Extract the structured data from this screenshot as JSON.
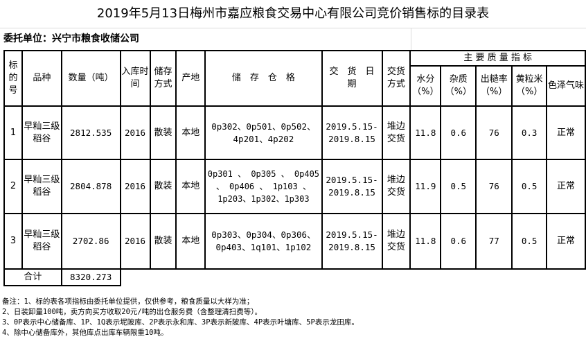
{
  "title": "2019年5月13日梅州市嘉应粮食交易中心有限公司竞价销售标的目录表",
  "client": "委托单位：兴宁市粮食收储公司",
  "headers": {
    "lot_no": "标的号",
    "variety": "品种",
    "quantity": "数量（吨）",
    "storage_time": "入库时间",
    "storage_mode": "储存方式",
    "origin": "产地",
    "warehouse": "储　存　仓　格",
    "delivery_date": "交　货　日　期",
    "delivery_mode": "交货方式",
    "quality_group": "主 要 质 量 指 标",
    "moisture": "水分（%）",
    "impurity": "杂质（%）",
    "husking_rate": "出糙率（%）",
    "yellow_rice": "黄粒米（%）",
    "color_odor": "色泽气味"
  },
  "rows": [
    {
      "lot": "1",
      "variety": "早籼三级稻谷",
      "quantity": "2812.535",
      "year": "2016",
      "mode": "散装",
      "origin": "本地",
      "warehouse": "0p302、0p501、0p502、4p201、4p202",
      "date": "2019.5.15-2019.8.15",
      "delivery": "堆边交货",
      "moisture": "11.8",
      "impurity": "0.6",
      "husking": "76",
      "yellow": "0.3",
      "color": "正常"
    },
    {
      "lot": "2",
      "variety": "早籼三级稻谷",
      "quantity": "2804.878",
      "year": "2016",
      "mode": "散装",
      "origin": "本地",
      "warehouse": "0p301 、 0p305 、 0p405 、 0p406 、 1p103 、1p203、1p302、1p303",
      "date": "2019.5.15-2019.8.15",
      "delivery": "堆边交货",
      "moisture": "11.9",
      "impurity": "0.5",
      "husking": "76",
      "yellow": "0.5",
      "color": "正常"
    },
    {
      "lot": "3",
      "variety": "早籼三级稻谷",
      "quantity": "2702.86",
      "year": "2016",
      "mode": "散装",
      "origin": "本地",
      "warehouse": "0p303、0p304、0p306、0p403、1q101、1p102",
      "date": "2019.5.15-2019.8.15",
      "delivery": "堆边交货",
      "moisture": "11.8",
      "impurity": "0.6",
      "husking": "77",
      "yellow": "0.5",
      "color": "正常"
    }
  ],
  "total": {
    "label": "合计",
    "quantity": "8320.273"
  },
  "notes": [
    "备注：1、标的表各项指标由委托单位提供，仅供参考，粮食质量以大样为准；",
    "2、日装卸量100吨，卖方向买方收取20元/吨的出仓服务费（含整理清扫费等）。",
    "3、0P表示中心储备库、1P、1Q表示坭陂库、2P表示永和库、3P表示新陂库、4P表示叶塘库、5P表示龙田库。",
    "4、除中心储备库外，其他库点出库车辆限重10吨。"
  ]
}
